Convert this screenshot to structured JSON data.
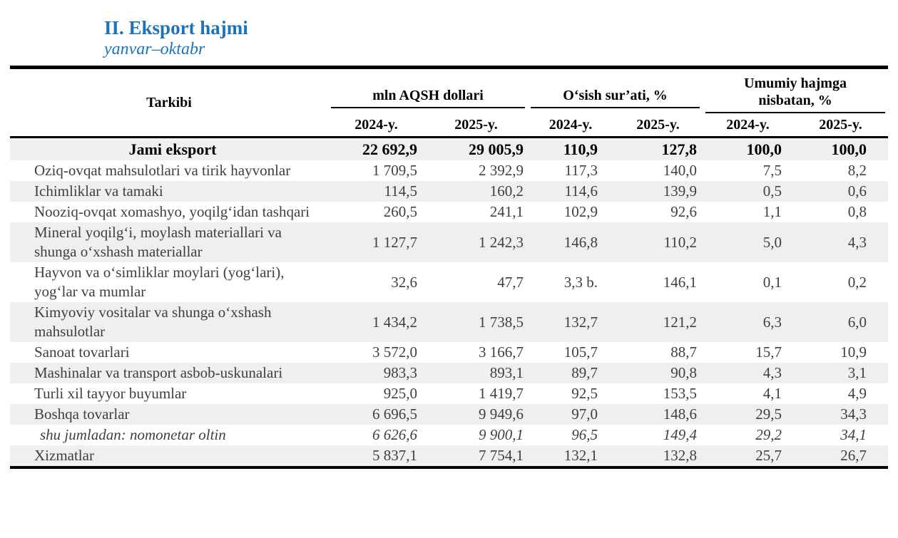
{
  "document": {
    "title": "II. Eksport hajmi",
    "subtitle": "yanvar–oktabr"
  },
  "table": {
    "stub_header": "Tarkibi",
    "column_groups": [
      {
        "label": "mln AQSH dollari",
        "years": [
          "2024-y.",
          "2025-y."
        ]
      },
      {
        "label": "O‘sish sur’ati, %",
        "years": [
          "2024-y.",
          "2025-y."
        ]
      },
      {
        "label": "Umumiy hajmga nisbatan, %",
        "years": [
          "2024-y.",
          "2025-y."
        ]
      }
    ],
    "rows": [
      {
        "label": "Jami eksport",
        "emphasis": "total",
        "values": [
          "22 692,9",
          "29 005,9",
          "110,9",
          "127,8",
          "100,0",
          "100,0"
        ]
      },
      {
        "label": "Oziq-ovqat mahsulotlari va tirik hayvonlar",
        "emphasis": "none",
        "values": [
          "1 709,5",
          "2 392,9",
          "117,3",
          "140,0",
          "7,5",
          "8,2"
        ]
      },
      {
        "label": "Ichimliklar va tamaki",
        "emphasis": "none",
        "values": [
          "114,5",
          "160,2",
          "114,6",
          "139,9",
          "0,5",
          "0,6"
        ]
      },
      {
        "label": "Nooziq-ovqat xomashyo, yoqilg‘idan tashqari",
        "emphasis": "none",
        "values": [
          "260,5",
          "241,1",
          "102,9",
          "92,6",
          "1,1",
          "0,8"
        ]
      },
      {
        "label": "Mineral yoqilg‘i, moylash materiallari va shunga o‘xshash materiallar",
        "emphasis": "none",
        "values": [
          "1 127,7",
          "1 242,3",
          "146,8",
          "110,2",
          "5,0",
          "4,3"
        ]
      },
      {
        "label": "Hayvon va o‘simliklar moylari (yog‘lari), yog‘lar va mumlar",
        "emphasis": "none",
        "values": [
          "32,6",
          "47,7",
          "3,3 b.",
          "146,1",
          "0,1",
          "0,2"
        ]
      },
      {
        "label": "Kimyoviy vositalar va shunga o‘xshash mahsulotlar",
        "emphasis": "none",
        "values": [
          "1 434,2",
          "1 738,5",
          "132,7",
          "121,2",
          "6,3",
          "6,0"
        ]
      },
      {
        "label": "Sanoat tovarlari",
        "emphasis": "none",
        "values": [
          "3 572,0",
          "3 166,7",
          "105,7",
          "88,7",
          "15,7",
          "10,9"
        ]
      },
      {
        "label": "Mashinalar va transport asbob-uskunalari",
        "emphasis": "none",
        "values": [
          "983,3",
          "893,1",
          "89,7",
          "90,8",
          "4,3",
          "3,1"
        ]
      },
      {
        "label": "Turli xil tayyor buyumlar",
        "emphasis": "none",
        "values": [
          "925,0",
          "1 419,7",
          "92,5",
          "153,5",
          "4,1",
          "4,9"
        ]
      },
      {
        "label": "Boshqa tovarlar",
        "emphasis": "none",
        "values": [
          "6 696,5",
          "9 949,6",
          "97,0",
          "148,6",
          "29,5",
          "34,3"
        ]
      },
      {
        "label": "shu jumladan: nomonetar oltin",
        "emphasis": "italic",
        "values": [
          "6 626,6",
          "9 900,1",
          "96,5",
          "149,4",
          "29,2",
          "34,1"
        ]
      },
      {
        "label": "Xizmatlar",
        "emphasis": "none",
        "values": [
          "5 837,1",
          "7 754,1",
          "132,1",
          "132,8",
          "25,7",
          "26,7"
        ]
      }
    ]
  },
  "colors": {
    "accent_blue": "#1B74BB",
    "stripe_gray": "#EFEFEF",
    "body_text": "#3F3F3F",
    "rule_black": "#000000"
  }
}
